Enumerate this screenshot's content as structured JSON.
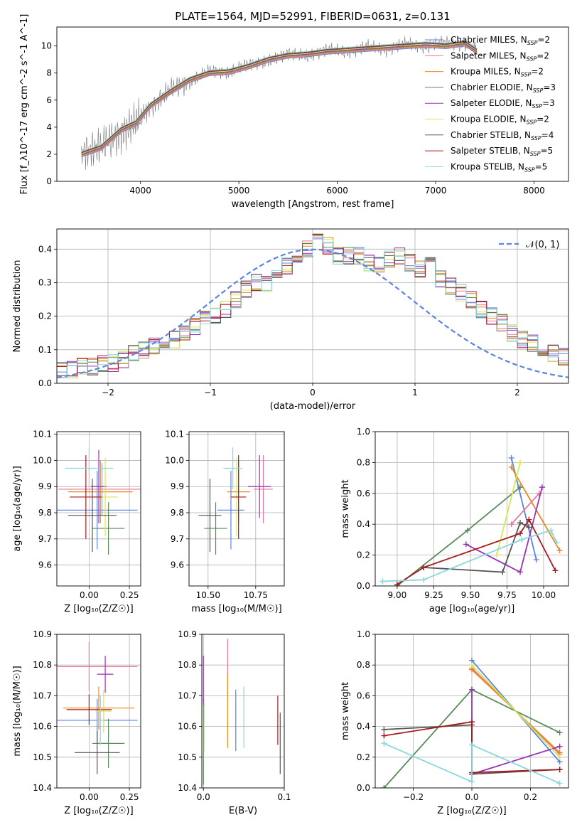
{
  "title": "PLATE=1564, MJD=52991, FIBERID=0631, z=0.131",
  "legend_spectrum": [
    {
      "label": "Chabrier MILES, N",
      "sub": "SSP",
      "tail": "=2",
      "color": "#5b84e0"
    },
    {
      "label": "Salpeter MILES, N",
      "sub": "SSP",
      "tail": "=2",
      "color": "#e9759a"
    },
    {
      "label": "Kroupa MILES, N",
      "sub": "SSP",
      "tail": "=2",
      "color": "#e88a1c"
    },
    {
      "label": "Chabrier ELODIE, N",
      "sub": "SSP",
      "tail": "=3",
      "color": "#5a8a5a"
    },
    {
      "label": "Salpeter ELODIE, N",
      "sub": "SSP",
      "tail": "=3",
      "color": "#9a32b8"
    },
    {
      "label": "Kroupa ELODIE, N",
      "sub": "SSP",
      "tail": "=2",
      "color": "#d6e85a"
    },
    {
      "label": "Chabrier STELIB, N",
      "sub": "SSP",
      "tail": "=4",
      "color": "#555555"
    },
    {
      "label": "Salpeter STELIB, N",
      "sub": "SSP",
      "tail": "=5",
      "color": "#a61c1c"
    },
    {
      "label": "Kroupa STELIB, N",
      "sub": "SSP",
      "tail": "=5",
      "color": "#88d8dc"
    }
  ],
  "chart_data": [
    {
      "type": "line",
      "panel": "spectrum",
      "xlabel": "wavelength [Angstrom, rest frame]",
      "ylabel": "Flux [f_λ10^-17 erg cm^-2 s^-1 A^-1]",
      "xlim": [
        3150,
        8350
      ],
      "ylim": [
        0,
        11.4
      ],
      "xticks": [
        "4000",
        "5000",
        "6000",
        "7000",
        "8000"
      ],
      "yticks": [
        "0",
        "2",
        "4",
        "6",
        "8",
        "10"
      ],
      "x": [
        3400,
        3600,
        3800,
        3950,
        4100,
        4300,
        4500,
        4700,
        4900,
        5100,
        5300,
        5500,
        5700,
        5900,
        6100,
        6300,
        6500,
        6700,
        6900,
        7100,
        7300,
        7420
      ],
      "series": [
        {
          "name": "model",
          "values": [
            2.0,
            2.5,
            3.8,
            4.3,
            5.6,
            6.6,
            7.5,
            8.0,
            8.1,
            8.5,
            9.0,
            9.3,
            9.4,
            9.6,
            9.7,
            9.8,
            9.9,
            10.0,
            10.1,
            10.0,
            10.2,
            9.6
          ]
        },
        {
          "name": "data",
          "values": [
            2.2,
            2.6,
            3.5,
            4.4,
            5.4,
            6.8,
            7.3,
            8.2,
            8.0,
            8.7,
            8.8,
            9.5,
            9.2,
            9.8,
            9.5,
            10.0,
            9.7,
            10.2,
            9.9,
            10.3,
            10.0,
            9.8
          ]
        }
      ],
      "grid": false,
      "legend": "right"
    },
    {
      "type": "bar",
      "panel": "residual-histogram",
      "xlabel": "(data-model)/error",
      "ylabel": "Normed distribution",
      "xlim": [
        -2.5,
        2.5
      ],
      "ylim": [
        0,
        0.46
      ],
      "xticks": [
        "−2",
        "−1",
        "0",
        "1",
        "2"
      ],
      "yticks": [
        "0.0",
        "0.1",
        "0.2",
        "0.3",
        "0.4"
      ],
      "bin_edges_start": -2.5,
      "bin_width": 0.1,
      "series": [
        {
          "name": "histogram",
          "values": [
            0.04,
            0.04,
            0.05,
            0.05,
            0.06,
            0.06,
            0.07,
            0.09,
            0.1,
            0.11,
            0.13,
            0.13,
            0.15,
            0.17,
            0.19,
            0.2,
            0.22,
            0.25,
            0.28,
            0.3,
            0.3,
            0.34,
            0.35,
            0.37,
            0.4,
            0.42,
            0.41,
            0.38,
            0.38,
            0.38,
            0.36,
            0.35,
            0.37,
            0.38,
            0.36,
            0.34,
            0.36,
            0.31,
            0.29,
            0.27,
            0.25,
            0.22,
            0.2,
            0.18,
            0.15,
            0.13,
            0.12,
            0.1,
            0.09,
            0.08,
            0.08,
            0.07,
            0.05,
            0.05,
            0.04,
            0.03,
            0.03,
            0.03,
            0.03,
            0.02
          ]
        }
      ],
      "legend_label": "𝒩(0, 1)",
      "grid": true,
      "legend": "top-right"
    },
    {
      "type": "scatter",
      "panel": "age-vs-Z",
      "xlabel": "Z [log₁₀(Z/Z☉)]",
      "ylabel": "age  [log₁₀(age/yr)]",
      "xlim": [
        -0.2,
        0.32
      ],
      "ylim": [
        9.52,
        10.11
      ],
      "xticks": [
        "0.00",
        "0.25"
      ],
      "yticks": [
        "9.6",
        "9.7",
        "9.8",
        "9.9",
        "10.0",
        "10.1"
      ],
      "points": [
        {
          "x": 0.05,
          "y": 9.81,
          "xerr": 0.25,
          "yerr": 0.15,
          "color": "#5b84e0"
        },
        {
          "x": 0.08,
          "y": 9.89,
          "xerr": 0.27,
          "yerr": 0.1,
          "color": "#e9759a"
        },
        {
          "x": 0.07,
          "y": 9.88,
          "xerr": 0.2,
          "yerr": 0.12,
          "color": "#e88a1c"
        },
        {
          "x": 0.12,
          "y": 9.74,
          "xerr": 0.1,
          "yerr": 0.1,
          "color": "#5a8a5a"
        },
        {
          "x": 0.06,
          "y": 9.9,
          "xerr": 0.05,
          "yerr": 0.14,
          "color": "#9a32b8"
        },
        {
          "x": 0.1,
          "y": 9.86,
          "xerr": 0.08,
          "yerr": 0.15,
          "color": "#d6e85a"
        },
        {
          "x": 0.02,
          "y": 9.79,
          "xerr": 0.15,
          "yerr": 0.14,
          "color": "#555555"
        },
        {
          "x": -0.02,
          "y": 9.86,
          "xerr": 0.1,
          "yerr": 0.16,
          "color": "#a61c1c"
        },
        {
          "x": 0.0,
          "y": 9.97,
          "xerr": 0.15,
          "yerr": 0.08,
          "color": "#88d8dc"
        }
      ]
    },
    {
      "type": "scatter",
      "panel": "age-vs-mass",
      "xlabel": "mass [log₁₀(M/M☉)]",
      "ylabel": "",
      "xlim": [
        10.4,
        10.9
      ],
      "ylim": [
        9.52,
        10.11
      ],
      "xticks": [
        "10.50",
        "10.75"
      ],
      "yticks": [
        "9.6",
        "9.7",
        "9.8",
        "9.9",
        "10.0",
        "10.1"
      ],
      "points": [
        {
          "x": 10.62,
          "y": 9.81,
          "xerr": 0.07,
          "yerr": 0.15,
          "color": "#5b84e0"
        },
        {
          "x": 10.79,
          "y": 9.89,
          "xerr": 0.05,
          "yerr": 0.13,
          "color": "#e9759a"
        },
        {
          "x": 10.66,
          "y": 9.88,
          "xerr": 0.06,
          "yerr": 0.12,
          "color": "#e88a1c"
        },
        {
          "x": 10.54,
          "y": 9.74,
          "xerr": 0.06,
          "yerr": 0.1,
          "color": "#5a8a5a"
        },
        {
          "x": 10.77,
          "y": 9.9,
          "xerr": 0.06,
          "yerr": 0.12,
          "color": "#9a32b8"
        },
        {
          "x": 10.65,
          "y": 9.86,
          "xerr": 0.04,
          "yerr": 0.15,
          "color": "#d6e85a"
        },
        {
          "x": 10.51,
          "y": 9.79,
          "xerr": 0.06,
          "yerr": 0.14,
          "color": "#555555"
        },
        {
          "x": 10.66,
          "y": 9.86,
          "xerr": 0.04,
          "yerr": 0.16,
          "color": "#a61c1c"
        },
        {
          "x": 10.63,
          "y": 9.97,
          "xerr": 0.05,
          "yerr": 0.08,
          "color": "#88d8dc"
        }
      ]
    },
    {
      "type": "line",
      "panel": "weight-vs-age",
      "xlabel": "age  [log₁₀(age/yr)]",
      "ylabel": "mass weight",
      "xlim": [
        8.85,
        10.17
      ],
      "ylim": [
        0,
        1
      ],
      "xticks": [
        "9.00",
        "9.25",
        "9.50",
        "9.75",
        "10.00"
      ],
      "yticks": [
        "0.0",
        "0.2",
        "0.4",
        "0.6",
        "0.8",
        "1.0"
      ],
      "series": [
        {
          "name": "Chabrier MILES",
          "x": [
            9.78,
            9.95
          ],
          "values": [
            0.83,
            0.17
          ],
          "color": "#5b84e0"
        },
        {
          "name": "Salpeter MILES",
          "x": [
            9.78,
            9.97
          ],
          "values": [
            0.4,
            0.6
          ],
          "color": "#e9759a"
        },
        {
          "name": "Kroupa MILES",
          "x": [
            9.78,
            10.11
          ],
          "values": [
            0.77,
            0.23
          ],
          "color": "#e88a1c"
        },
        {
          "name": "Chabrier ELODIE",
          "x": [
            9.0,
            9.48,
            9.84
          ],
          "values": [
            0.0,
            0.36,
            0.64
          ],
          "color": "#5a8a5a"
        },
        {
          "name": "Salpeter ELODIE",
          "x": [
            9.47,
            9.84,
            9.99
          ],
          "values": [
            0.27,
            0.09,
            0.64
          ],
          "color": "#9a32b8"
        },
        {
          "name": "Kroupa ELODIE",
          "x": [
            9.68,
            9.84
          ],
          "values": [
            0.2,
            0.8
          ],
          "color": "#d6e85a"
        },
        {
          "name": "Chabrier STELIB",
          "x": [
            9.18,
            9.72,
            9.84,
            9.9
          ],
          "values": [
            0.12,
            0.09,
            0.41,
            0.38
          ],
          "color": "#555555"
        },
        {
          "name": "Salpeter STELIB",
          "x": [
            9.0,
            9.18,
            9.84,
            9.9,
            10.08
          ],
          "values": [
            0.01,
            0.12,
            0.34,
            0.43,
            0.1
          ],
          "color": "#a61c1c"
        },
        {
          "name": "Kroupa STELIB",
          "x": [
            8.9,
            9.18,
            9.85,
            10.05,
            10.09
          ],
          "values": [
            0.03,
            0.04,
            0.3,
            0.36,
            0.28
          ],
          "color": "#88d8dc"
        }
      ]
    },
    {
      "type": "scatter",
      "panel": "mass-vs-Z",
      "xlabel": "Z [log₁₀(Z/Z☉)]",
      "ylabel": "mass [log₁₀(M/M☉)]",
      "xlim": [
        -0.2,
        0.32
      ],
      "ylim": [
        10.4,
        10.9
      ],
      "xticks": [
        "0.00",
        "0.25"
      ],
      "yticks": [
        "10.4",
        "10.5",
        "10.6",
        "10.7",
        "10.8",
        "10.9"
      ],
      "points": [
        {
          "x": 0.05,
          "y": 10.62,
          "xerr": 0.25,
          "yerr": 0.07,
          "color": "#5b84e0"
        },
        {
          "x": 0.0,
          "y": 10.795,
          "xerr": 0.3,
          "yerr": 0.08,
          "color": "#e9759a"
        },
        {
          "x": 0.06,
          "y": 10.66,
          "xerr": 0.22,
          "yerr": 0.07,
          "color": "#e88a1c"
        },
        {
          "x": 0.12,
          "y": 10.545,
          "xerr": 0.1,
          "yerr": 0.08,
          "color": "#5a8a5a"
        },
        {
          "x": 0.1,
          "y": 10.77,
          "xerr": 0.05,
          "yerr": 0.06,
          "color": "#9a32b8"
        },
        {
          "x": 0.09,
          "y": 10.65,
          "xerr": 0.05,
          "yerr": 0.07,
          "color": "#d6e85a"
        },
        {
          "x": 0.05,
          "y": 10.515,
          "xerr": 0.14,
          "yerr": 0.07,
          "color": "#555555"
        },
        {
          "x": 0.0,
          "y": 10.655,
          "xerr": 0.14,
          "yerr": 0.05,
          "color": "#a61c1c"
        },
        {
          "x": 0.07,
          "y": 10.62,
          "xerr": 0.02,
          "yerr": 0.08,
          "color": "#88d8dc"
        }
      ]
    },
    {
      "type": "scatter",
      "panel": "mass-vs-EBV",
      "xlabel": "E(B-V)",
      "ylabel": "",
      "xlim": [
        -0.002,
        0.1
      ],
      "ylim": [
        10.4,
        10.9
      ],
      "xticks": [
        "0.0",
        "0.1"
      ],
      "yticks": [
        "10.4",
        "10.5",
        "10.6",
        "10.7",
        "10.8",
        "10.9"
      ],
      "points": [
        {
          "x": 0.04,
          "y": 10.62,
          "xerr": 0.0,
          "yerr": 0.1,
          "color": "#5b84e0"
        },
        {
          "x": 0.03,
          "y": 10.795,
          "xerr": 0.0,
          "yerr": 0.09,
          "color": "#e9759a"
        },
        {
          "x": 0.03,
          "y": 10.65,
          "xerr": 0.0,
          "yerr": 0.12,
          "color": "#e88a1c"
        },
        {
          "x": 0.0,
          "y": 10.55,
          "xerr": 0.0,
          "yerr": 0.14,
          "color": "#5a8a5a"
        },
        {
          "x": 0.0,
          "y": 10.75,
          "xerr": 0.0,
          "yerr": 0.08,
          "color": "#9a32b8"
        },
        {
          "x": 0.001,
          "y": 10.6,
          "xerr": 0.0,
          "yerr": 0.08,
          "color": "#d6e85a"
        },
        {
          "x": 0.095,
          "y": 10.545,
          "xerr": 0.0,
          "yerr": 0.1,
          "color": "#555555"
        },
        {
          "x": 0.092,
          "y": 10.62,
          "xerr": 0.0,
          "yerr": 0.08,
          "color": "#a61c1c"
        },
        {
          "x": 0.05,
          "y": 10.63,
          "xerr": 0.0,
          "yerr": 0.1,
          "color": "#88d8dc"
        }
      ]
    },
    {
      "type": "line",
      "panel": "weight-vs-Z",
      "xlabel": "Z [log₁₀(Z/Z☉)]",
      "ylabel": "mass weight",
      "xlim": [
        -0.33,
        0.33
      ],
      "ylim": [
        0,
        1
      ],
      "xticks": [
        "−0.2",
        "0.0",
        "0.2"
      ],
      "yticks": [
        "0.0",
        "0.2",
        "0.4",
        "0.6",
        "0.8",
        "1.0"
      ],
      "series": [
        {
          "name": "Chabrier MILES",
          "x": [
            0.0,
            0.3
          ],
          "values": [
            0.83,
            0.17
          ],
          "color": "#5b84e0"
        },
        {
          "name": "Salpeter MILES",
          "x": [
            0.0,
            0.3
          ],
          "values": [
            0.78,
            0.22
          ],
          "color": "#e9759a"
        },
        {
          "name": "Kroupa MILES",
          "x": [
            0.0,
            0.3
          ],
          "values": [
            0.77,
            0.23
          ],
          "color": "#e88a1c"
        },
        {
          "name": "Chabrier ELODIE",
          "x": [
            -0.3,
            0.0,
            0.3
          ],
          "values": [
            0.0,
            0.64,
            0.36
          ],
          "color": "#5a8a5a"
        },
        {
          "name": "Salpeter ELODIE",
          "x": [
            0.0,
            0.0,
            0.3
          ],
          "values": [
            0.64,
            0.09,
            0.27
          ],
          "color": "#9a32b8"
        },
        {
          "name": "Kroupa ELODIE",
          "x": [
            0.0,
            0.3
          ],
          "values": [
            0.8,
            0.2
          ],
          "color": "#d6e85a"
        },
        {
          "name": "Chabrier STELIB",
          "x": [
            -0.3,
            0.0,
            0.0,
            0.3
          ],
          "values": [
            0.38,
            0.41,
            0.09,
            0.12
          ],
          "color": "#555555"
        },
        {
          "name": "Salpeter STELIB",
          "x": [
            -0.3,
            0.0,
            0.0,
            0.3
          ],
          "values": [
            0.34,
            0.43,
            0.1,
            0.12
          ],
          "color": "#a61c1c"
        },
        {
          "name": "Kroupa STELIB",
          "x": [
            -0.3,
            0.0,
            0.0,
            0.3
          ],
          "values": [
            0.29,
            0.04,
            0.28,
            0.03
          ],
          "color": "#88d8dc"
        }
      ]
    }
  ]
}
